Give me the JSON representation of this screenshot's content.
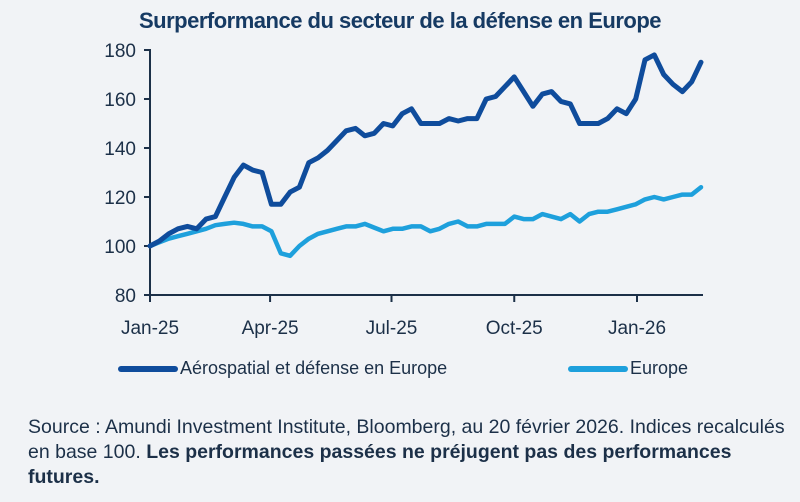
{
  "chart_data": {
    "type": "line",
    "title": "Surperformance du secteur de la défense en Europe",
    "xlabel": "",
    "ylabel": "",
    "ylim": [
      80,
      180
    ],
    "y_ticks": [
      80,
      100,
      120,
      140,
      160,
      180
    ],
    "x_ticks": [
      {
        "label": "Jan-25",
        "date": "2025-01-01"
      },
      {
        "label": "Apr-25",
        "date": "2025-04-01"
      },
      {
        "label": "Jul-25",
        "date": "2025-07-01"
      },
      {
        "label": "Oct-25",
        "date": "2025-10-01"
      },
      {
        "label": "Jan-26",
        "date": "2026-01-01"
      }
    ],
    "grid": false,
    "legend_position": "bottom",
    "x": [
      "2025-01-01",
      "2025-01-08",
      "2025-01-15",
      "2025-01-22",
      "2025-01-29",
      "2025-02-05",
      "2025-02-12",
      "2025-02-19",
      "2025-02-26",
      "2025-03-05",
      "2025-03-12",
      "2025-03-19",
      "2025-03-26",
      "2025-04-02",
      "2025-04-09",
      "2025-04-16",
      "2025-04-23",
      "2025-04-30",
      "2025-05-07",
      "2025-05-14",
      "2025-05-21",
      "2025-05-28",
      "2025-06-04",
      "2025-06-11",
      "2025-06-18",
      "2025-06-25",
      "2025-07-02",
      "2025-07-09",
      "2025-07-16",
      "2025-07-23",
      "2025-07-30",
      "2025-08-06",
      "2025-08-13",
      "2025-08-20",
      "2025-08-27",
      "2025-09-03",
      "2025-09-10",
      "2025-09-17",
      "2025-09-24",
      "2025-10-01",
      "2025-10-08",
      "2025-10-15",
      "2025-10-22",
      "2025-10-29",
      "2025-11-05",
      "2025-11-12",
      "2025-11-19",
      "2025-11-26",
      "2025-12-03",
      "2025-12-10",
      "2025-12-17",
      "2025-12-24",
      "2025-12-31",
      "2026-01-07",
      "2026-01-14",
      "2026-01-21",
      "2026-01-28",
      "2026-02-04",
      "2026-02-11",
      "2026-02-18"
    ],
    "series": [
      {
        "name": "Aérospatial et défense en Europe",
        "color": "#0f4c9c",
        "values": [
          100,
          102,
          105,
          107,
          108,
          107,
          111,
          112,
          120,
          128,
          133,
          131,
          130,
          117,
          117,
          122,
          124,
          134,
          136,
          139,
          143,
          147,
          148,
          145,
          146,
          150,
          149,
          154,
          156,
          150,
          150,
          150,
          152,
          151,
          152,
          152,
          160,
          161,
          165,
          169,
          163,
          157,
          162,
          163,
          159,
          158,
          150,
          150,
          150,
          152,
          156,
          154,
          160,
          176,
          178,
          170,
          166,
          163,
          167,
          175
        ]
      },
      {
        "name": "Europe",
        "color": "#1ea0dc",
        "values": [
          100,
          101.5,
          103,
          104,
          105,
          106,
          107,
          108.5,
          109,
          109.5,
          109,
          108,
          108,
          106,
          97,
          96,
          100,
          103,
          105,
          106,
          107,
          108,
          108,
          109,
          107.5,
          106,
          107,
          107,
          108,
          108,
          106,
          107,
          109,
          110,
          108,
          108,
          109,
          109,
          109,
          112,
          111,
          111,
          113,
          112,
          111,
          113,
          110,
          113,
          114,
          114,
          115,
          116,
          117,
          119,
          120,
          119,
          120,
          121,
          121,
          124
        ]
      }
    ]
  },
  "source": {
    "regular": "Source : Amundi Investment Institute, Bloomberg, au 20 février 2026. Indices recalculés en base 100. ",
    "bold": "Les performances passées ne préjugent pas des performances futures."
  }
}
